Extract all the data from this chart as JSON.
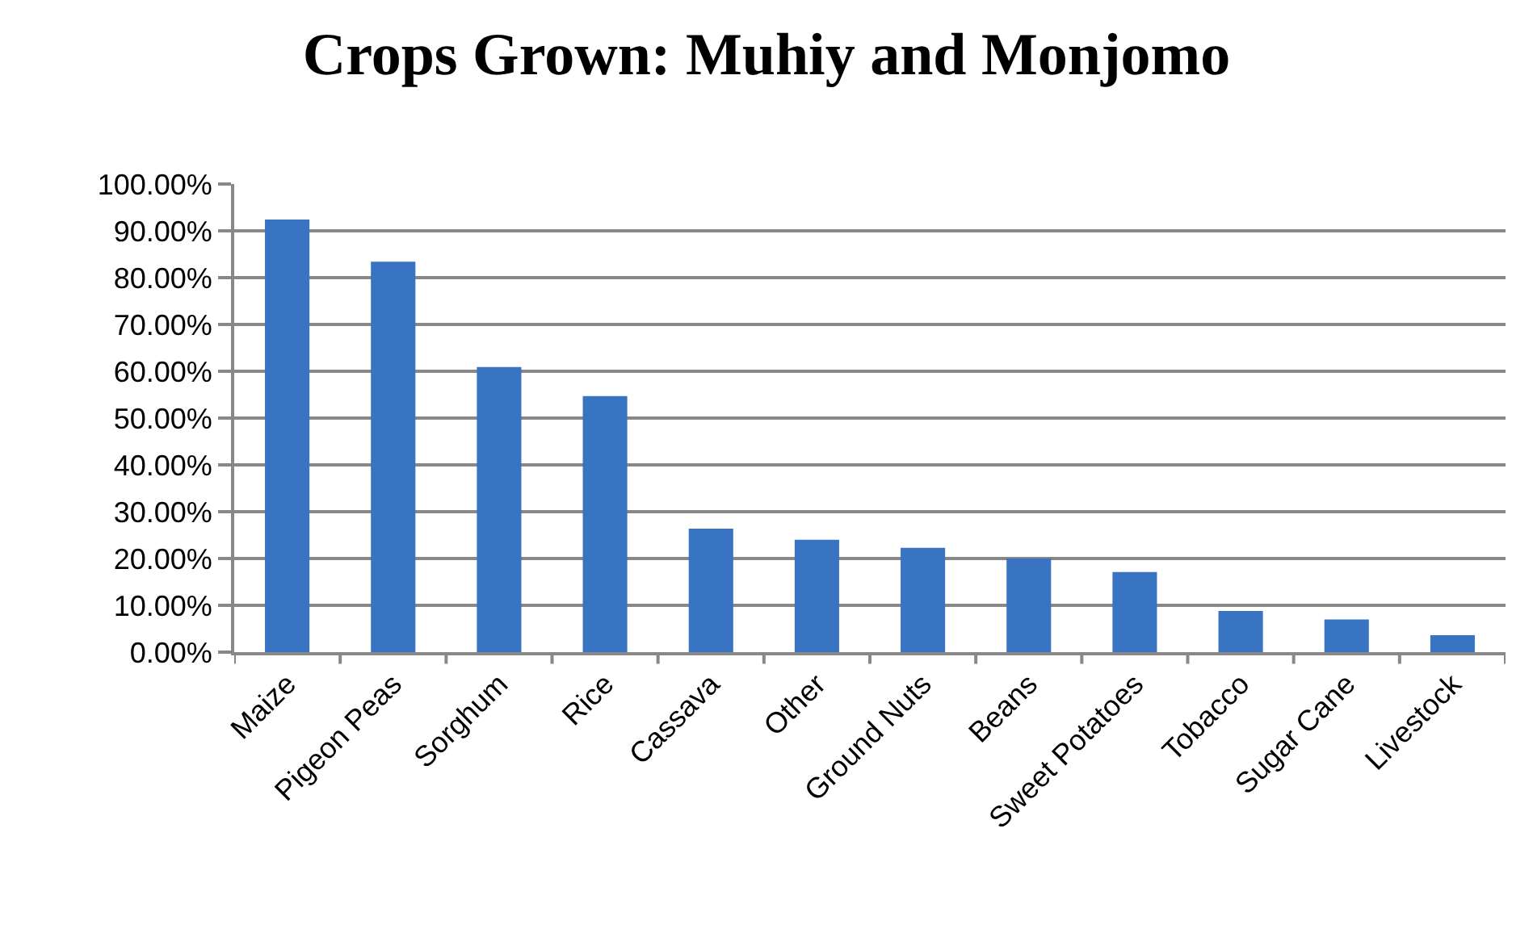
{
  "chart_data": {
    "type": "bar",
    "title": "Crops Grown: Muhiy and Monjomo",
    "categories": [
      "Maize",
      "Pigeon Peas",
      "Sorghum",
      "Rice",
      "Cassava",
      "Other",
      "Ground Nuts",
      "Beans",
      "Sweet Potatoes",
      "Tobacco",
      "Sugar Cane",
      "Livestock"
    ],
    "values": [
      92.4,
      83.4,
      60.9,
      54.7,
      26.4,
      24.0,
      22.3,
      20.0,
      17.1,
      8.8,
      7.0,
      3.6
    ],
    "color": "#3874c2",
    "ylim": [
      0,
      100
    ],
    "yticks": [
      {
        "value": 0,
        "label": "0.00%"
      },
      {
        "value": 10,
        "label": "10.00%"
      },
      {
        "value": 20,
        "label": "20.00%"
      },
      {
        "value": 30,
        "label": "30.00%"
      },
      {
        "value": 40,
        "label": "40.00%"
      },
      {
        "value": 50,
        "label": "50.00%"
      },
      {
        "value": 60,
        "label": "60.00%"
      },
      {
        "value": 70,
        "label": "70.00%"
      },
      {
        "value": 80,
        "label": "80.00%"
      },
      {
        "value": 90,
        "label": "90.00%"
      },
      {
        "value": 100,
        "label": "100.00%"
      }
    ],
    "grid": "y"
  }
}
